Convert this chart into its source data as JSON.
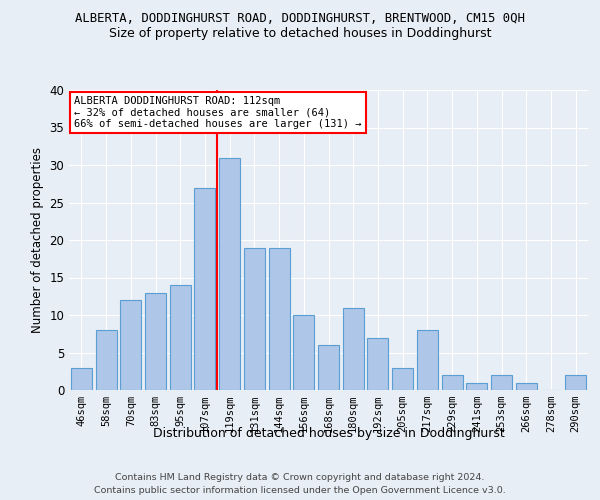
{
  "title": "ALBERTA, DODDINGHURST ROAD, DODDINGHURST, BRENTWOOD, CM15 0QH",
  "subtitle": "Size of property relative to detached houses in Doddinghurst",
  "xlabel": "Distribution of detached houses by size in Doddinghurst",
  "ylabel": "Number of detached properties",
  "footer_line1": "Contains HM Land Registry data © Crown copyright and database right 2024.",
  "footer_line2": "Contains public sector information licensed under the Open Government Licence v3.0.",
  "bins": [
    "46sqm",
    "58sqm",
    "70sqm",
    "83sqm",
    "95sqm",
    "107sqm",
    "119sqm",
    "131sqm",
    "144sqm",
    "156sqm",
    "168sqm",
    "180sqm",
    "192sqm",
    "205sqm",
    "217sqm",
    "229sqm",
    "241sqm",
    "253sqm",
    "266sqm",
    "278sqm",
    "290sqm"
  ],
  "values": [
    3,
    8,
    12,
    13,
    14,
    27,
    31,
    19,
    19,
    10,
    6,
    11,
    7,
    3,
    8,
    2,
    1,
    2,
    1,
    0,
    2
  ],
  "bar_color": "#aec6e8",
  "bar_edge_color": "#5a9fd4",
  "bg_color": "#e8eef5",
  "grid_color": "#ffffff",
  "annotation_line1": "ALBERTA DODDINGHURST ROAD: 112sqm",
  "annotation_line2": "← 32% of detached houses are smaller (64)",
  "annotation_line3": "66% of semi-detached houses are larger (131) →",
  "red_line_x": 5.5,
  "ylim": [
    0,
    40
  ],
  "yticks": [
    0,
    5,
    10,
    15,
    20,
    25,
    30,
    35,
    40
  ]
}
